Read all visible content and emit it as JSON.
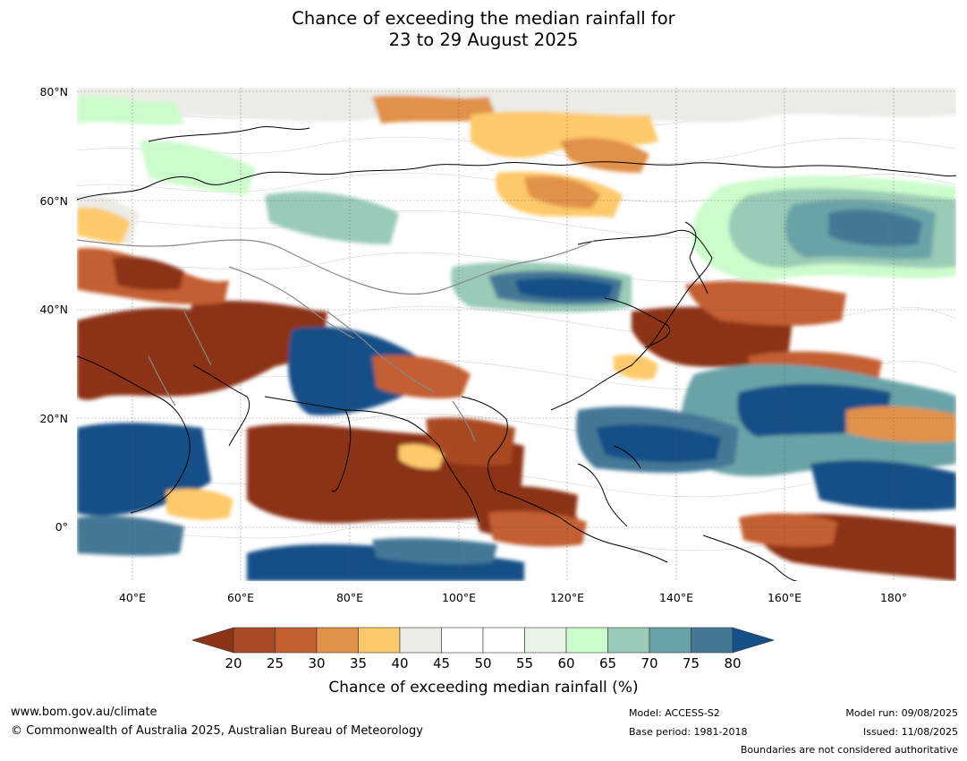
{
  "title": {
    "line1": "Chance of exceeding the median rainfall for",
    "line2": "23 to 29 August 2025"
  },
  "map": {
    "lat_labels": [
      "80°N",
      "60°N",
      "40°N",
      "20°N",
      "0°"
    ],
    "lon_labels": [
      "40°E",
      "60°E",
      "80°E",
      "100°E",
      "120°E",
      "140°E",
      "160°E",
      "180°"
    ]
  },
  "colorbar": {
    "ticks": [
      "20",
      "25",
      "30",
      "35",
      "40",
      "45",
      "50",
      "55",
      "60",
      "65",
      "70",
      "75",
      "80"
    ],
    "colors": {
      "lt20": "#8c3318",
      "20-25": "#a94a24",
      "25-30": "#c35f30",
      "30-35": "#e1914a",
      "35-40": "#fdc96b",
      "40-45": "#ecebe6",
      "45-50": "#ffffff",
      "50-55": "#ffffff",
      "55-60": "#e8f4e8",
      "60-65": "#ccfccc",
      "65-70": "#9acbb6",
      "70-75": "#6aa3a7",
      "75-80": "#457897",
      "gt80": "#154f87"
    },
    "label": "Chance of exceeding median rainfall (%)"
  },
  "footer": {
    "website": "www.bom.gov.au/climate",
    "copyright": "© Commonwealth of Australia 2025, Australian Bureau of Meteorology",
    "model": "Model: ACCESS-S2",
    "base_period": "Base period: 1981-2018",
    "model_run": "Model run: 09/08/2025",
    "issued": "Issued: 11/08/2025",
    "boundaries_note": "Boundaries are not considered authoritative"
  }
}
